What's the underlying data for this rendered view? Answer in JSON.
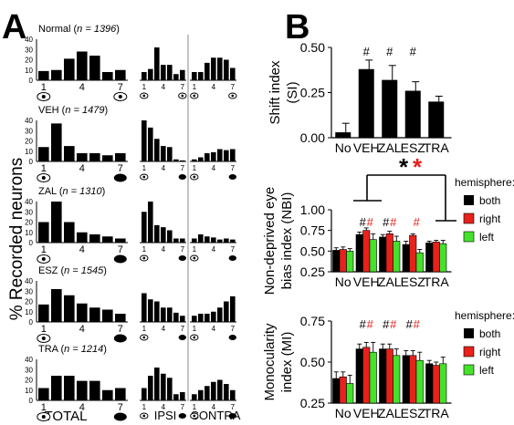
{
  "panel_labels": {
    "a": "A",
    "b": "B"
  },
  "panel_a": {
    "ylabel": "% Recorded neurons",
    "xlabel_total": "TOTAL",
    "xlabel_ipsi": "IPSI",
    "xlabel_contra": "CONTRA",
    "ocular_dominance_ticks": [
      "1",
      "4",
      "7"
    ],
    "total_yticks": [
      "0",
      "10",
      "20",
      "30",
      "40"
    ]
  },
  "panel_b": {
    "legend_title": "hemisphere:",
    "legend": [
      {
        "name": "both",
        "color": "#000000"
      },
      {
        "name": "right",
        "color": "#e8211a"
      },
      {
        "name": "left",
        "color": "#44e22b"
      }
    ],
    "significance": {
      "marker": "#",
      "star_black": "*",
      "star_red": "*"
    }
  },
  "chart_data": [
    {
      "type": "bar",
      "group": "Normal",
      "n_label": "Normal (",
      "n_value": "n = 1396",
      "n_close": ")",
      "view": "TOTAL",
      "categories": [
        "1",
        "2",
        "3",
        "4",
        "5",
        "6",
        "7"
      ],
      "values": [
        9,
        10,
        21,
        28,
        24,
        8,
        10
      ],
      "ylim": [
        0,
        40
      ],
      "yticks": [
        0,
        10,
        20,
        30,
        40
      ]
    },
    {
      "type": "bar",
      "group": "Normal",
      "view": "IPSI",
      "categories": [
        "1",
        "2",
        "3",
        "4",
        "5",
        "6",
        "7"
      ],
      "values": [
        8,
        11,
        32,
        15,
        15,
        6,
        10
      ],
      "ylim": [
        0,
        40
      ]
    },
    {
      "type": "bar",
      "group": "Normal",
      "view": "CONTRA",
      "categories": [
        "1",
        "2",
        "3",
        "4",
        "5",
        "6",
        "7"
      ],
      "values": [
        8,
        8,
        17,
        22,
        22,
        20,
        12
      ],
      "ylim": [
        0,
        40
      ]
    },
    {
      "type": "bar",
      "group": "VEH",
      "n_label": "VEH (",
      "n_value": "n = 1479",
      "n_close": ")",
      "view": "TOTAL",
      "categories": [
        "1",
        "2",
        "3",
        "4",
        "5",
        "6",
        "7"
      ],
      "values": [
        14,
        37,
        15,
        8,
        8,
        6,
        8
      ],
      "ylim": [
        0,
        40
      ],
      "yticks": [
        0,
        10,
        20,
        30,
        40
      ]
    },
    {
      "type": "bar",
      "group": "VEH",
      "view": "IPSI",
      "categories": [
        "1",
        "2",
        "3",
        "4",
        "5",
        "6",
        "7"
      ],
      "values": [
        40,
        33,
        22,
        15,
        14,
        2,
        1
      ],
      "ylim": [
        0,
        40
      ]
    },
    {
      "type": "bar",
      "group": "VEH",
      "view": "CONTRA",
      "categories": [
        "1",
        "2",
        "3",
        "4",
        "5",
        "6",
        "7"
      ],
      "values": [
        2,
        4,
        8,
        9,
        12,
        11,
        12
      ],
      "ylim": [
        0,
        40
      ]
    },
    {
      "type": "bar",
      "group": "ZAL",
      "n_label": "ZAL (",
      "n_value": "n = 1310",
      "n_close": ")",
      "view": "TOTAL",
      "categories": [
        "1",
        "2",
        "3",
        "4",
        "5",
        "6",
        "7"
      ],
      "values": [
        20,
        40,
        20,
        10,
        8,
        6,
        4
      ],
      "ylim": [
        0,
        40
      ],
      "yticks": [
        0,
        10,
        20,
        30,
        40
      ]
    },
    {
      "type": "bar",
      "group": "ZAL",
      "view": "IPSI",
      "categories": [
        "1",
        "2",
        "3",
        "4",
        "5",
        "6",
        "7"
      ],
      "values": [
        30,
        40,
        17,
        15,
        12,
        4,
        4
      ],
      "ylim": [
        0,
        40
      ]
    },
    {
      "type": "bar",
      "group": "ZAL",
      "view": "CONTRA",
      "categories": [
        "1",
        "2",
        "3",
        "4",
        "5",
        "6",
        "7"
      ],
      "values": [
        4,
        8,
        6,
        5,
        3,
        4,
        3
      ],
      "ylim": [
        0,
        40
      ]
    },
    {
      "type": "bar",
      "group": "ESZ",
      "n_label": "ESZ (",
      "n_value": "n = 1545",
      "n_close": ")",
      "view": "TOTAL",
      "categories": [
        "1",
        "2",
        "3",
        "4",
        "5",
        "6",
        "7"
      ],
      "values": [
        17,
        32,
        26,
        18,
        14,
        12,
        8
      ],
      "ylim": [
        0,
        40
      ],
      "yticks": [
        0,
        10,
        20,
        30,
        40
      ]
    },
    {
      "type": "bar",
      "group": "ESZ",
      "view": "IPSI",
      "categories": [
        "1",
        "2",
        "3",
        "4",
        "5",
        "6",
        "7"
      ],
      "values": [
        28,
        22,
        20,
        14,
        14,
        9,
        6
      ],
      "ylim": [
        0,
        40
      ]
    },
    {
      "type": "bar",
      "group": "ESZ",
      "view": "CONTRA",
      "categories": [
        "1",
        "2",
        "3",
        "4",
        "5",
        "6",
        "7"
      ],
      "values": [
        6,
        8,
        8,
        10,
        14,
        20,
        25
      ],
      "ylim": [
        0,
        40
      ]
    },
    {
      "type": "bar",
      "group": "TRA",
      "n_label": "TRA (",
      "n_value": "n = 1214",
      "n_close": ")",
      "view": "TOTAL",
      "categories": [
        "1",
        "2",
        "3",
        "4",
        "5",
        "6",
        "7"
      ],
      "values": [
        12,
        24,
        24,
        19,
        19,
        10,
        12
      ],
      "ylim": [
        0,
        40
      ],
      "yticks": [
        0,
        10,
        20,
        30,
        40
      ]
    },
    {
      "type": "bar",
      "group": "TRA",
      "view": "IPSI",
      "categories": [
        "1",
        "2",
        "3",
        "4",
        "5",
        "6",
        "7"
      ],
      "values": [
        12,
        24,
        32,
        26,
        22,
        6,
        8
      ],
      "ylim": [
        0,
        40
      ]
    },
    {
      "type": "bar",
      "group": "TRA",
      "view": "CONTRA",
      "categories": [
        "1",
        "2",
        "3",
        "4",
        "5",
        "6",
        "7"
      ],
      "values": [
        6,
        10,
        14,
        18,
        20,
        16,
        10
      ],
      "ylim": [
        0,
        40
      ]
    },
    {
      "type": "bar",
      "panel": "B-top",
      "ylabel": "Shift index (SI)",
      "categories": [
        "No",
        "VEH",
        "ZAL",
        "ESZ",
        "TRA"
      ],
      "values": [
        0.03,
        0.38,
        0.32,
        0.26,
        0.2
      ],
      "errors": [
        0.05,
        0.05,
        0.08,
        0.05,
        0.03
      ],
      "significant": [
        false,
        true,
        true,
        true,
        false
      ],
      "ylim": [
        0,
        0.5
      ],
      "yticks": [
        "0.00",
        "0.25",
        "0.50"
      ]
    },
    {
      "type": "bar",
      "panel": "B-middle",
      "ylabel": "Non-deprived eye bias index (NBI)",
      "categories": [
        "No",
        "VEH",
        "ZAL",
        "ESZ",
        "TRA"
      ],
      "series": [
        {
          "name": "both",
          "values": [
            0.51,
            0.7,
            0.67,
            0.58,
            0.6
          ],
          "errors": [
            0.03,
            0.03,
            0.03,
            0.04,
            0.02
          ]
        },
        {
          "name": "right",
          "values": [
            0.52,
            0.75,
            0.71,
            0.69,
            0.61
          ],
          "errors": [
            0.03,
            0.03,
            0.03,
            0.02,
            0.02
          ]
        },
        {
          "name": "left",
          "values": [
            0.5,
            0.64,
            0.62,
            0.48,
            0.59
          ],
          "errors": [
            0.03,
            0.07,
            0.06,
            0.04,
            0.04
          ]
        }
      ],
      "significance_marks": [
        {
          "category": "VEH",
          "black": true,
          "red": true
        },
        {
          "category": "ZAL",
          "black": true,
          "red": true
        },
        {
          "category": "ESZ",
          "black": false,
          "red": true
        }
      ],
      "ylim": [
        0.25,
        1.0
      ],
      "yticks": [
        "0.25",
        "0.50",
        "0.75",
        "1.00"
      ]
    },
    {
      "type": "bar",
      "panel": "B-bottom",
      "ylabel": "Monocularity index (MI)",
      "categories": [
        "No",
        "VEH",
        "ZAL",
        "ESZ",
        "TRA"
      ],
      "series": [
        {
          "name": "both",
          "values": [
            0.4,
            0.58,
            0.58,
            0.54,
            0.49
          ],
          "errors": [
            0.04,
            0.03,
            0.03,
            0.03,
            0.02
          ]
        },
        {
          "name": "right",
          "values": [
            0.41,
            0.59,
            0.58,
            0.54,
            0.48
          ],
          "errors": [
            0.03,
            0.03,
            0.03,
            0.03,
            0.02
          ]
        },
        {
          "name": "left",
          "values": [
            0.37,
            0.56,
            0.54,
            0.51,
            0.49
          ],
          "errors": [
            0.05,
            0.06,
            0.04,
            0.05,
            0.04
          ]
        }
      ],
      "significance_marks": [
        {
          "category": "VEH",
          "black": true,
          "red": true
        },
        {
          "category": "ZAL",
          "black": true,
          "red": true
        },
        {
          "category": "ESZ",
          "black": true,
          "red": true
        }
      ],
      "ylim": [
        0.25,
        0.75
      ],
      "yticks": [
        "0.25",
        "0.50",
        "0.75"
      ]
    }
  ]
}
